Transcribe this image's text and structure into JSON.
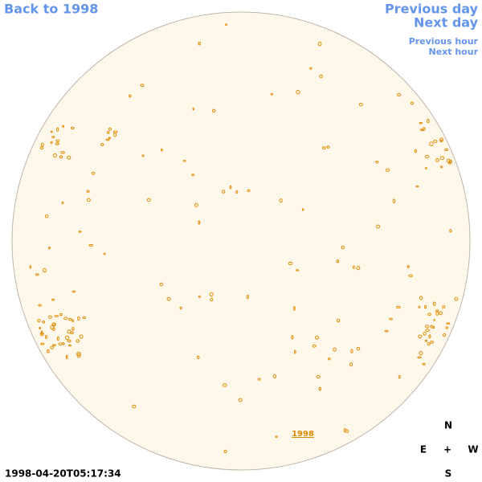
{
  "nav": {
    "back": "Back to 1998",
    "previous_day": "Previous day",
    "next_day": "Next day",
    "previous_hour": "Previous hour",
    "next_hour": "Next hour"
  },
  "disk_label": "1998",
  "compass": {
    "north": "N",
    "east": "E",
    "center": "+",
    "west": "W",
    "south": "S"
  },
  "timestamp": "1998-04-20T05:17:34"
}
